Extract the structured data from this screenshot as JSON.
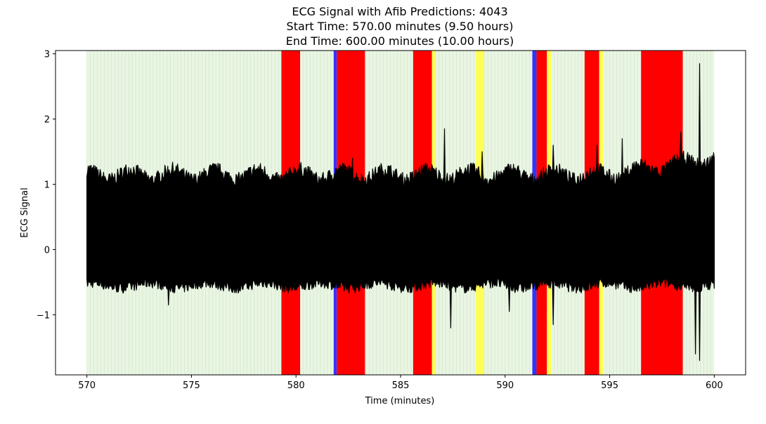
{
  "chart_data": {
    "type": "line",
    "title": "ECG Signal with Afib Predictions: 4043",
    "subtitle_lines": [
      "Start Time: 570.00 minutes (9.50 hours)",
      "End Time: 600.00 minutes (10.00 hours)"
    ],
    "xlabel": "Time (minutes)",
    "ylabel": "ECG Signal",
    "xlim": [
      568.5,
      601.5
    ],
    "ylim": [
      -1.92,
      3.05
    ],
    "xticks": [
      570,
      575,
      580,
      585,
      590,
      595,
      600
    ],
    "yticks": [
      -1,
      0,
      1,
      2,
      3
    ],
    "ytick_labels": [
      "−1",
      "0",
      "1",
      "2",
      "3"
    ],
    "grid": false,
    "legend": "none",
    "signal": {
      "x_range": [
        570,
        600
      ],
      "typical_upper_envelope": 1.15,
      "typical_lower_envelope": -0.55,
      "spikes": [
        {
          "x": 582.7,
          "y": 1.4
        },
        {
          "x": 587.1,
          "y": 1.85
        },
        {
          "x": 588.9,
          "y": 1.5
        },
        {
          "x": 592.3,
          "y": 1.6
        },
        {
          "x": 594.4,
          "y": 1.6
        },
        {
          "x": 595.6,
          "y": 1.7
        },
        {
          "x": 598.4,
          "y": 1.8
        },
        {
          "x": 599.3,
          "y": 2.85
        },
        {
          "x": 587.4,
          "y": -1.2
        },
        {
          "x": 590.2,
          "y": -0.95
        },
        {
          "x": 592.3,
          "y": -1.15
        },
        {
          "x": 599.1,
          "y": -1.6
        },
        {
          "x": 599.3,
          "y": -1.7
        },
        {
          "x": 573.9,
          "y": -0.85
        }
      ]
    },
    "background_bands": [
      {
        "x0": 570.0,
        "x1": 579.3,
        "class": "normal"
      },
      {
        "x0": 579.3,
        "x1": 580.2,
        "class": "afib"
      },
      {
        "x0": 580.2,
        "x1": 581.8,
        "class": "normal"
      },
      {
        "x0": 581.8,
        "x1": 581.95,
        "class": "blue"
      },
      {
        "x0": 581.95,
        "x1": 583.3,
        "class": "afib"
      },
      {
        "x0": 583.3,
        "x1": 585.6,
        "class": "normal"
      },
      {
        "x0": 585.6,
        "x1": 586.5,
        "class": "afib"
      },
      {
        "x0": 586.5,
        "x1": 586.65,
        "class": "yellow"
      },
      {
        "x0": 586.65,
        "x1": 588.6,
        "class": "normal"
      },
      {
        "x0": 588.6,
        "x1": 589.0,
        "class": "yellow"
      },
      {
        "x0": 589.0,
        "x1": 591.3,
        "class": "normal"
      },
      {
        "x0": 591.3,
        "x1": 591.5,
        "class": "blue"
      },
      {
        "x0": 591.5,
        "x1": 592.0,
        "class": "afib"
      },
      {
        "x0": 592.0,
        "x1": 592.2,
        "class": "yellow"
      },
      {
        "x0": 592.2,
        "x1": 593.8,
        "class": "normal"
      },
      {
        "x0": 593.8,
        "x1": 594.5,
        "class": "afib"
      },
      {
        "x0": 594.5,
        "x1": 594.7,
        "class": "yellow"
      },
      {
        "x0": 594.7,
        "x1": 596.5,
        "class": "normal"
      },
      {
        "x0": 596.5,
        "x1": 598.5,
        "class": "afib"
      },
      {
        "x0": 598.5,
        "x1": 600.0,
        "class": "normal"
      }
    ],
    "band_colors": {
      "normal": "#eaf5e4",
      "afib": "#ff0000",
      "blue": "#3333ff",
      "yellow": "#ffff55",
      "normal_stripe": "#c9e6c0",
      "signal": "#000000"
    }
  }
}
